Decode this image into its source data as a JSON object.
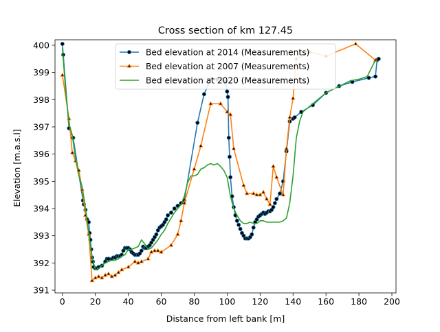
{
  "chart_data": {
    "type": "line",
    "title": "Cross section of km 127.45",
    "xlabel": "Distance from left bank [m]",
    "ylabel": "Elevation [m.a.s.l]",
    "xlim": [
      -4.5,
      202.5
    ],
    "ylim": [
      390.9,
      400.2
    ],
    "xticks": [
      0,
      20,
      40,
      60,
      80,
      100,
      120,
      140,
      160,
      180,
      200
    ],
    "yticks": [
      391,
      392,
      393,
      394,
      395,
      396,
      397,
      398,
      399,
      400
    ],
    "grid": false,
    "legend": "top-center",
    "series": [
      {
        "name": "Bed elevation at 2014 (Measurements)",
        "color": "#1f77b4",
        "marker": "circle",
        "x": [
          0,
          0.5,
          4,
          6.5,
          12.5,
          13,
          14,
          15,
          16,
          16.5,
          17,
          17.5,
          18,
          18.5,
          19,
          20,
          21,
          22,
          24,
          26,
          27,
          28,
          30,
          31,
          32,
          33,
          34,
          35,
          36,
          37,
          38,
          39,
          40,
          41,
          42,
          43,
          44,
          45,
          46,
          47,
          48,
          49,
          50,
          51,
          52,
          53,
          54,
          55,
          56,
          57,
          58,
          59,
          60,
          61,
          62,
          63,
          64,
          66,
          68,
          70,
          72,
          74,
          82,
          86,
          90,
          94,
          97,
          99,
          100,
          100.5,
          101,
          101.5,
          102,
          103,
          104,
          105,
          106,
          107,
          108,
          109,
          110,
          111,
          112,
          113,
          114,
          115,
          116,
          117,
          118,
          119,
          120,
          121,
          122,
          123,
          124,
          125,
          126,
          127,
          128,
          129,
          130,
          132,
          134,
          136,
          138,
          140,
          141,
          145,
          152,
          160,
          168,
          176,
          186,
          190,
          191,
          192
        ],
        "y": [
          400.05,
          399.65,
          396.95,
          396.6,
          394.3,
          394.15,
          393.95,
          393.6,
          393.5,
          393.1,
          392.85,
          392.5,
          392.2,
          392.05,
          391.85,
          391.8,
          391.8,
          391.85,
          391.9,
          392.05,
          392.15,
          392.15,
          392.15,
          392.2,
          392.2,
          392.25,
          392.25,
          392.25,
          392.3,
          392.45,
          392.55,
          392.55,
          392.55,
          392.5,
          392.4,
          392.35,
          392.3,
          392.3,
          392.3,
          392.35,
          392.45,
          392.6,
          392.55,
          392.55,
          392.6,
          392.65,
          392.75,
          392.85,
          392.95,
          393.05,
          393.2,
          393.3,
          393.35,
          393.4,
          393.5,
          393.6,
          393.75,
          393.85,
          394.0,
          394.1,
          394.2,
          394.3,
          397.15,
          398.2,
          398.75,
          398.75,
          398.75,
          398.65,
          398.3,
          398.1,
          396.6,
          395.9,
          395.15,
          394.45,
          394.05,
          393.75,
          393.55,
          393.4,
          393.25,
          393.1,
          393.0,
          392.9,
          392.9,
          392.9,
          392.95,
          393.05,
          393.3,
          393.5,
          393.6,
          393.7,
          393.75,
          393.8,
          393.85,
          393.8,
          393.85,
          393.9,
          393.9,
          393.95,
          394.05,
          394.2,
          394.35,
          394.55,
          395.0,
          396.1,
          397.2,
          397.3,
          397.35,
          397.55,
          397.8,
          398.25,
          398.5,
          398.65,
          398.8,
          398.85,
          399.45,
          399.5
        ]
      },
      {
        "name": "Bed elevation at 2007 (Measurements)",
        "color": "#ff7f0e",
        "marker": "triangle",
        "x": [
          0,
          4,
          6,
          8,
          10,
          12,
          14,
          16,
          18,
          20,
          22,
          24,
          26,
          28,
          30,
          32,
          34,
          36,
          40,
          44,
          46,
          48,
          52,
          54,
          56,
          58,
          60,
          66,
          70,
          72,
          74,
          80,
          84,
          90,
          96,
          100,
          102,
          104,
          110,
          112,
          116,
          118,
          120,
          122,
          124,
          126,
          128,
          130,
          134,
          136,
          138,
          140,
          142,
          150,
          160,
          178,
          190
        ],
        "y": [
          398.9,
          397.3,
          396.05,
          395.75,
          395.4,
          394.7,
          393.75,
          393.05,
          391.35,
          391.45,
          391.5,
          391.45,
          391.55,
          391.6,
          391.5,
          391.55,
          391.65,
          391.75,
          391.85,
          392.05,
          392.0,
          392.05,
          392.15,
          392.4,
          392.45,
          392.45,
          392.4,
          392.65,
          393.05,
          393.55,
          394.2,
          395.45,
          396.3,
          397.85,
          397.85,
          397.55,
          397.45,
          396.2,
          394.85,
          394.55,
          394.55,
          394.5,
          394.5,
          394.6,
          394.35,
          394.15,
          395.55,
          395.15,
          394.5,
          396.2,
          397.35,
          398.05,
          399.5,
          399.75,
          399.6,
          400.05,
          399.45
        ]
      },
      {
        "name": "Bed elevation at 2020 (Measurements)",
        "color": "#2ca02c",
        "marker": "none",
        "x": [
          0,
          2,
          4,
          6,
          8,
          10,
          12,
          14,
          16,
          18,
          20,
          22,
          24,
          26,
          28,
          30,
          32,
          34,
          36,
          38,
          40,
          42,
          44,
          46,
          48,
          50,
          52,
          54,
          56,
          58,
          60,
          62,
          64,
          66,
          68,
          70,
          72,
          74,
          76,
          78,
          80,
          82,
          84,
          86,
          88,
          90,
          92,
          94,
          96,
          98,
          100,
          102,
          104,
          106,
          108,
          110,
          112,
          114,
          116,
          118,
          120,
          122,
          124,
          126,
          128,
          130,
          132,
          134,
          136,
          138,
          140,
          142,
          144,
          146,
          148,
          150,
          155,
          160,
          165,
          170,
          175,
          180,
          185,
          190
        ],
        "y": [
          399.9,
          398.3,
          397.1,
          396.7,
          395.8,
          395.2,
          394.8,
          394.0,
          393.1,
          392.2,
          391.75,
          391.8,
          391.9,
          392.0,
          392.05,
          392.1,
          392.1,
          392.15,
          392.25,
          392.3,
          392.5,
          392.5,
          392.55,
          392.6,
          392.85,
          392.7,
          392.5,
          392.55,
          392.7,
          392.85,
          393.05,
          393.2,
          393.45,
          393.65,
          393.85,
          394.0,
          394.15,
          394.45,
          394.95,
          395.2,
          395.2,
          395.25,
          395.45,
          395.5,
          395.6,
          395.65,
          395.6,
          395.65,
          395.55,
          395.4,
          395.15,
          394.45,
          394.0,
          393.75,
          393.55,
          393.45,
          393.45,
          393.5,
          393.45,
          393.45,
          393.55,
          393.55,
          393.5,
          393.5,
          393.5,
          393.5,
          393.5,
          393.55,
          393.65,
          394.2,
          395.2,
          396.6,
          397.2,
          397.55,
          397.65,
          397.75,
          398.0,
          398.25,
          398.4,
          398.55,
          398.7,
          398.75,
          398.85,
          399.45
        ]
      }
    ]
  }
}
